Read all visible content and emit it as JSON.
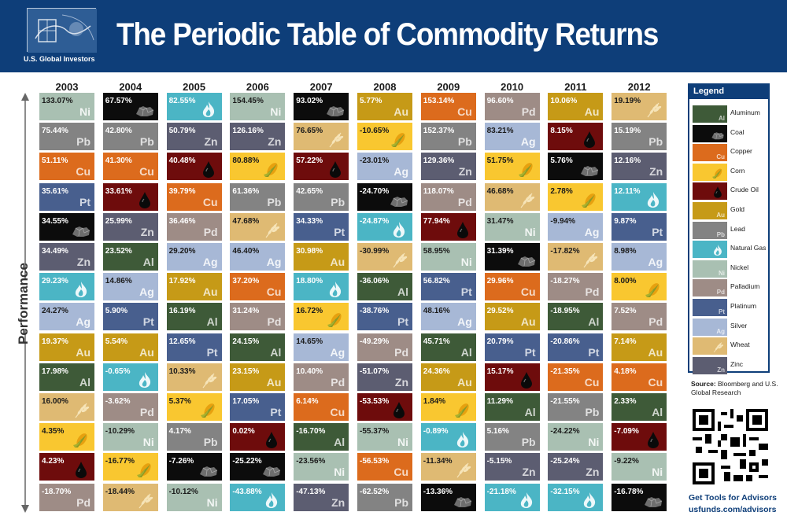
{
  "header": {
    "title": "The Periodic Table of Commodity Returns",
    "logo_text": "U.S. Global Investors"
  },
  "axis": {
    "performance_label": "Performance"
  },
  "commodities": {
    "Ni": {
      "name": "Nickel",
      "color": "#a9c0b2",
      "text": "dark",
      "icon": "none"
    },
    "Pb": {
      "name": "Lead",
      "color": "#838383",
      "text": "light",
      "icon": "none"
    },
    "Cu": {
      "name": "Copper",
      "color": "#dc6b1d",
      "text": "light",
      "icon": "none"
    },
    "Pt": {
      "name": "Platinum",
      "color": "#485f8e",
      "text": "light",
      "icon": "none"
    },
    "Coal": {
      "name": "Coal",
      "color": "#0c0c0c",
      "text": "light",
      "icon": "coal-icon"
    },
    "Zn": {
      "name": "Zinc",
      "color": "#5c5d71",
      "text": "light",
      "icon": "none"
    },
    "NG": {
      "name": "Natural Gas",
      "color": "#4bb5c5",
      "text": "light",
      "icon": "flame-icon"
    },
    "Ag": {
      "name": "Silver",
      "color": "#a7b8d6",
      "text": "dark",
      "icon": "none"
    },
    "Au": {
      "name": "Gold",
      "color": "#c69a17",
      "text": "light",
      "icon": "none"
    },
    "Al": {
      "name": "Aluminum",
      "color": "#3e5a38",
      "text": "light",
      "icon": "none"
    },
    "Wheat": {
      "name": "Wheat",
      "color": "#dfba73",
      "text": "dark",
      "icon": "wheat-icon"
    },
    "Corn": {
      "name": "Corn",
      "color": "#f9c730",
      "text": "dark",
      "icon": "corn-icon"
    },
    "Oil": {
      "name": "Crude Oil",
      "color": "#6e0c0c",
      "text": "light",
      "icon": "oil-drop-icon"
    },
    "Pd": {
      "name": "Palladium",
      "color": "#9e8c86",
      "text": "light",
      "icon": "none"
    }
  },
  "chart_data": {
    "type": "table",
    "title": "The Periodic Table of Commodity Returns",
    "ylabel": "Performance",
    "years": [
      {
        "year": "2003",
        "cells": [
          {
            "value": "133.07%",
            "c": "Ni"
          },
          {
            "value": "75.44%",
            "c": "Pb"
          },
          {
            "value": "51.11%",
            "c": "Cu"
          },
          {
            "value": "35.61%",
            "c": "Pt"
          },
          {
            "value": "34.55%",
            "c": "Coal"
          },
          {
            "value": "34.49%",
            "c": "Zn"
          },
          {
            "value": "29.23%",
            "c": "NG"
          },
          {
            "value": "24.27%",
            "c": "Ag"
          },
          {
            "value": "19.37%",
            "c": "Au"
          },
          {
            "value": "17.98%",
            "c": "Al"
          },
          {
            "value": "16.00%",
            "c": "Wheat"
          },
          {
            "value": "4.35%",
            "c": "Corn"
          },
          {
            "value": "4.23%",
            "c": "Oil"
          },
          {
            "value": "-18.70%",
            "c": "Pd"
          }
        ]
      },
      {
        "year": "2004",
        "cells": [
          {
            "value": "67.57%",
            "c": "Coal"
          },
          {
            "value": "42.80%",
            "c": "Pb"
          },
          {
            "value": "41.30%",
            "c": "Cu"
          },
          {
            "value": "33.61%",
            "c": "Oil"
          },
          {
            "value": "25.99%",
            "c": "Zn"
          },
          {
            "value": "23.52%",
            "c": "Al"
          },
          {
            "value": "14.86%",
            "c": "Ag"
          },
          {
            "value": "5.90%",
            "c": "Pt"
          },
          {
            "value": "5.54%",
            "c": "Au"
          },
          {
            "value": "-0.65%",
            "c": "NG"
          },
          {
            "value": "-3.62%",
            "c": "Pd"
          },
          {
            "value": "-10.29%",
            "c": "Ni"
          },
          {
            "value": "-16.77%",
            "c": "Corn"
          },
          {
            "value": "-18.44%",
            "c": "Wheat"
          }
        ]
      },
      {
        "year": "2005",
        "cells": [
          {
            "value": "82.55%",
            "c": "NG"
          },
          {
            "value": "50.79%",
            "c": "Zn"
          },
          {
            "value": "40.48%",
            "c": "Oil"
          },
          {
            "value": "39.79%",
            "c": "Cu"
          },
          {
            "value": "36.46%",
            "c": "Pd"
          },
          {
            "value": "29.20%",
            "c": "Ag"
          },
          {
            "value": "17.92%",
            "c": "Au"
          },
          {
            "value": "16.19%",
            "c": "Al"
          },
          {
            "value": "12.65%",
            "c": "Pt"
          },
          {
            "value": "10.33%",
            "c": "Wheat"
          },
          {
            "value": "5.37%",
            "c": "Corn"
          },
          {
            "value": "4.17%",
            "c": "Pb"
          },
          {
            "value": "-7.26%",
            "c": "Coal"
          },
          {
            "value": "-10.12%",
            "c": "Ni"
          }
        ]
      },
      {
        "year": "2006",
        "cells": [
          {
            "value": "154.45%",
            "c": "Ni"
          },
          {
            "value": "126.16%",
            "c": "Zn"
          },
          {
            "value": "80.88%",
            "c": "Corn"
          },
          {
            "value": "61.36%",
            "c": "Pb"
          },
          {
            "value": "47.68%",
            "c": "Wheat"
          },
          {
            "value": "46.40%",
            "c": "Ag"
          },
          {
            "value": "37.20%",
            "c": "Cu"
          },
          {
            "value": "31.24%",
            "c": "Pd"
          },
          {
            "value": "24.15%",
            "c": "Al"
          },
          {
            "value": "23.15%",
            "c": "Au"
          },
          {
            "value": "17.05%",
            "c": "Pt"
          },
          {
            "value": "0.02%",
            "c": "Oil"
          },
          {
            "value": "-25.22%",
            "c": "Coal"
          },
          {
            "value": "-43.88%",
            "c": "NG"
          }
        ]
      },
      {
        "year": "2007",
        "cells": [
          {
            "value": "93.02%",
            "c": "Coal"
          },
          {
            "value": "76.65%",
            "c": "Wheat"
          },
          {
            "value": "57.22%",
            "c": "Oil"
          },
          {
            "value": "42.65%",
            "c": "Pb"
          },
          {
            "value": "34.33%",
            "c": "Pt"
          },
          {
            "value": "30.98%",
            "c": "Au"
          },
          {
            "value": "18.80%",
            "c": "NG"
          },
          {
            "value": "16.72%",
            "c": "Corn"
          },
          {
            "value": "14.65%",
            "c": "Ag"
          },
          {
            "value": "10.40%",
            "c": "Pd"
          },
          {
            "value": "6.14%",
            "c": "Cu"
          },
          {
            "value": "-16.70%",
            "c": "Al"
          },
          {
            "value": "-23.56%",
            "c": "Ni"
          },
          {
            "value": "-47.13%",
            "c": "Zn"
          }
        ]
      },
      {
        "year": "2008",
        "cells": [
          {
            "value": "5.77%",
            "c": "Au"
          },
          {
            "value": "-10.65%",
            "c": "Corn"
          },
          {
            "value": "-23.01%",
            "c": "Ag"
          },
          {
            "value": "-24.70%",
            "c": "Coal"
          },
          {
            "value": "-24.87%",
            "c": "NG"
          },
          {
            "value": "-30.99%",
            "c": "Wheat"
          },
          {
            "value": "-36.06%",
            "c": "Al"
          },
          {
            "value": "-38.76%",
            "c": "Pt"
          },
          {
            "value": "-49.29%",
            "c": "Pd"
          },
          {
            "value": "-51.07%",
            "c": "Zn"
          },
          {
            "value": "-53.53%",
            "c": "Oil"
          },
          {
            "value": "-55.37%",
            "c": "Ni"
          },
          {
            "value": "-56.53%",
            "c": "Cu"
          },
          {
            "value": "-62.52%",
            "c": "Pb"
          }
        ]
      },
      {
        "year": "2009",
        "cells": [
          {
            "value": "153.14%",
            "c": "Cu"
          },
          {
            "value": "152.37%",
            "c": "Pb"
          },
          {
            "value": "129.36%",
            "c": "Zn"
          },
          {
            "value": "118.07%",
            "c": "Pd"
          },
          {
            "value": "77.94%",
            "c": "Oil"
          },
          {
            "value": "58.95%",
            "c": "Ni"
          },
          {
            "value": "56.82%",
            "c": "Pt"
          },
          {
            "value": "48.16%",
            "c": "Ag"
          },
          {
            "value": "45.71%",
            "c": "Al"
          },
          {
            "value": "24.36%",
            "c": "Au"
          },
          {
            "value": "1.84%",
            "c": "Corn"
          },
          {
            "value": "-0.89%",
            "c": "NG"
          },
          {
            "value": "-11.34%",
            "c": "Wheat"
          },
          {
            "value": "-13.36%",
            "c": "Coal"
          }
        ]
      },
      {
        "year": "2010",
        "cells": [
          {
            "value": "96.60%",
            "c": "Pd"
          },
          {
            "value": "83.21%",
            "c": "Ag"
          },
          {
            "value": "51.75%",
            "c": "Corn"
          },
          {
            "value": "46.68%",
            "c": "Wheat"
          },
          {
            "value": "31.47%",
            "c": "Ni"
          },
          {
            "value": "31.39%",
            "c": "Coal"
          },
          {
            "value": "29.96%",
            "c": "Cu"
          },
          {
            "value": "29.52%",
            "c": "Au"
          },
          {
            "value": "20.79%",
            "c": "Pt"
          },
          {
            "value": "15.17%",
            "c": "Oil"
          },
          {
            "value": "11.29%",
            "c": "Al"
          },
          {
            "value": "5.16%",
            "c": "Pb"
          },
          {
            "value": "-5.15%",
            "c": "Zn"
          },
          {
            "value": "-21.18%",
            "c": "NG"
          }
        ]
      },
      {
        "year": "2011",
        "cells": [
          {
            "value": "10.06%",
            "c": "Au"
          },
          {
            "value": "8.15%",
            "c": "Oil"
          },
          {
            "value": "5.76%",
            "c": "Coal"
          },
          {
            "value": "2.78%",
            "c": "Corn"
          },
          {
            "value": "-9.94%",
            "c": "Ag"
          },
          {
            "value": "-17.82%",
            "c": "Wheat"
          },
          {
            "value": "-18.27%",
            "c": "Pd"
          },
          {
            "value": "-18.95%",
            "c": "Al"
          },
          {
            "value": "-20.86%",
            "c": "Pt"
          },
          {
            "value": "-21.35%",
            "c": "Cu"
          },
          {
            "value": "-21.55%",
            "c": "Pb"
          },
          {
            "value": "-24.22%",
            "c": "Ni"
          },
          {
            "value": "-25.24%",
            "c": "Zn"
          },
          {
            "value": "-32.15%",
            "c": "NG"
          }
        ]
      },
      {
        "year": "2012",
        "cells": [
          {
            "value": "19.19%",
            "c": "Wheat"
          },
          {
            "value": "15.19%",
            "c": "Pb"
          },
          {
            "value": "12.16%",
            "c": "Zn"
          },
          {
            "value": "12.11%",
            "c": "NG"
          },
          {
            "value": "9.87%",
            "c": "Pt"
          },
          {
            "value": "8.98%",
            "c": "Ag"
          },
          {
            "value": "8.00%",
            "c": "Corn"
          },
          {
            "value": "7.52%",
            "c": "Pd"
          },
          {
            "value": "7.14%",
            "c": "Au"
          },
          {
            "value": "4.18%",
            "c": "Cu"
          },
          {
            "value": "2.33%",
            "c": "Al"
          },
          {
            "value": "-7.09%",
            "c": "Oil"
          },
          {
            "value": "-9.22%",
            "c": "Ni"
          },
          {
            "value": "-16.78%",
            "c": "Coal"
          }
        ]
      }
    ]
  },
  "legend": {
    "title": "Legend",
    "items": [
      {
        "c": "Al",
        "label": "Aluminum"
      },
      {
        "c": "Coal",
        "label": "Coal"
      },
      {
        "c": "Cu",
        "label": "Copper"
      },
      {
        "c": "Corn",
        "label": "Corn"
      },
      {
        "c": "Oil",
        "label": "Crude Oil"
      },
      {
        "c": "Au",
        "label": "Gold"
      },
      {
        "c": "Pb",
        "label": "Lead"
      },
      {
        "c": "NG",
        "label": "Natural Gas"
      },
      {
        "c": "Ni",
        "label": "Nickel"
      },
      {
        "c": "Pd",
        "label": "Palladium"
      },
      {
        "c": "Pt",
        "label": "Platinum"
      },
      {
        "c": "Ag",
        "label": "Silver"
      },
      {
        "c": "Wheat",
        "label": "Wheat"
      },
      {
        "c": "Zn",
        "label": "Zinc"
      }
    ]
  },
  "source": {
    "label": "Source:",
    "text": "Bloomberg and U.S. Global Research"
  },
  "cta": {
    "line1": "Get Tools for Advisors",
    "line2": "usfunds.com/advisors"
  }
}
